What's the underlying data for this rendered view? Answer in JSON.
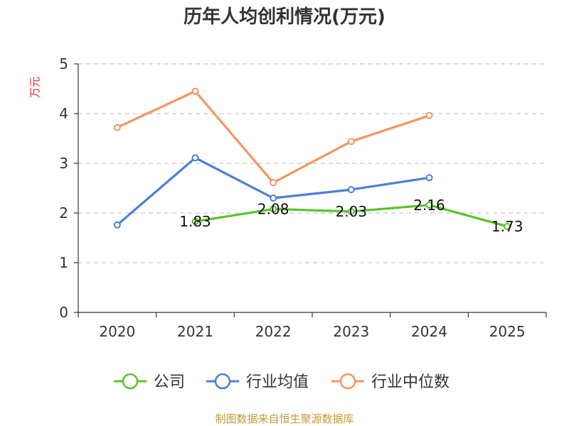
{
  "chart_data": {
    "type": "line",
    "title": "历年人均创利情况(万元)",
    "ylabel": "万元",
    "categories": [
      "2020",
      "2021",
      "2022",
      "2023",
      "2024",
      "2025"
    ],
    "ylim": [
      0,
      5
    ],
    "yticks": [
      0,
      1,
      2,
      3,
      4,
      5
    ],
    "grid": true,
    "legend_position": "bottom",
    "series": [
      {
        "name": "公司",
        "color": "#5cc22d",
        "values": [
          null,
          1.83,
          2.08,
          2.03,
          2.16,
          1.73
        ],
        "labels": [
          "",
          "1.83",
          "2.08",
          "2.03",
          "2.16",
          "1.73"
        ]
      },
      {
        "name": "行业均值",
        "color": "#4a7fd9",
        "values": [
          1.76,
          3.11,
          2.3,
          2.47,
          2.71,
          null
        ]
      },
      {
        "name": "行业中位数",
        "color": "#f59463",
        "values": [
          3.72,
          4.45,
          2.61,
          3.44,
          3.96,
          null
        ]
      }
    ]
  },
  "source_note": "制图数据来自恒生聚源数据库"
}
